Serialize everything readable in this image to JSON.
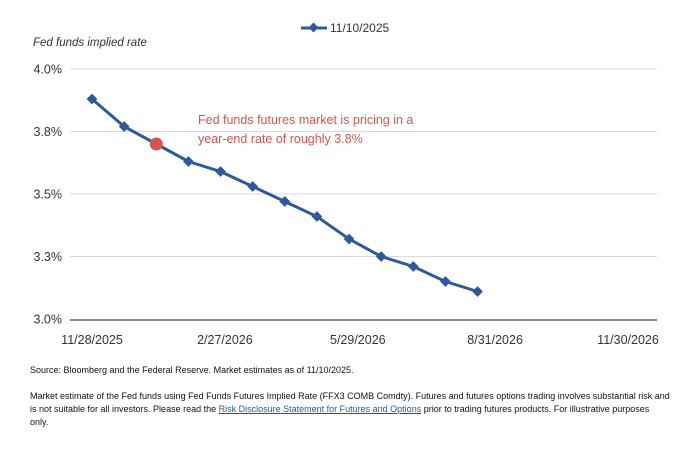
{
  "chart_data": {
    "type": "line",
    "ylabel": "Fed funds implied rate",
    "yticks": [
      "3.0%",
      "3.3%",
      "3.5%",
      "3.8%",
      "4.0%"
    ],
    "ylim": [
      3.0,
      4.0
    ],
    "xticks": [
      "11/28/2025",
      "2/27/2026",
      "5/29/2026",
      "8/31/2026",
      "11/30/2026"
    ],
    "grid": true,
    "legend": "top-center",
    "series": [
      {
        "name": "11/10/2025",
        "color": "#2e5a9a",
        "x": [
          "11/28/2025",
          "12/20/2025",
          "1/11/2026",
          "2/2/2026",
          "2/24/2026",
          "3/18/2026",
          "4/9/2026",
          "5/1/2026",
          "5/23/2026",
          "6/14/2026",
          "7/6/2026",
          "7/28/2026",
          "8/19/2026"
        ],
        "values": [
          3.88,
          3.77,
          3.7,
          3.63,
          3.59,
          3.53,
          3.47,
          3.41,
          3.32,
          3.25,
          3.21,
          3.15,
          3.11
        ]
      }
    ],
    "highlight": {
      "x": "1/11/2026",
      "value": 3.7,
      "color": "#d9534f"
    },
    "annotation": {
      "lines": [
        "Fed funds futures market is pricing in a",
        "year-end rate of roughly 3.8%"
      ],
      "color": "#d9534f"
    }
  },
  "footer": {
    "source": "Source: Bloomberg and the Federal Reserve. Market estimates as of 11/10/2025.",
    "disclaimer_before": "Market estimate of the Fed funds using Fed Funds Futures Implied Rate (FFX3 COMB Comdty). Futures and futures options trading involves substantial risk and is not suitable for all investors. Please read the ",
    "disclaimer_link": "Risk Disclosure Statement for Futures and Options",
    "disclaimer_after": " prior to trading futures products. For illustrative purposes only."
  }
}
